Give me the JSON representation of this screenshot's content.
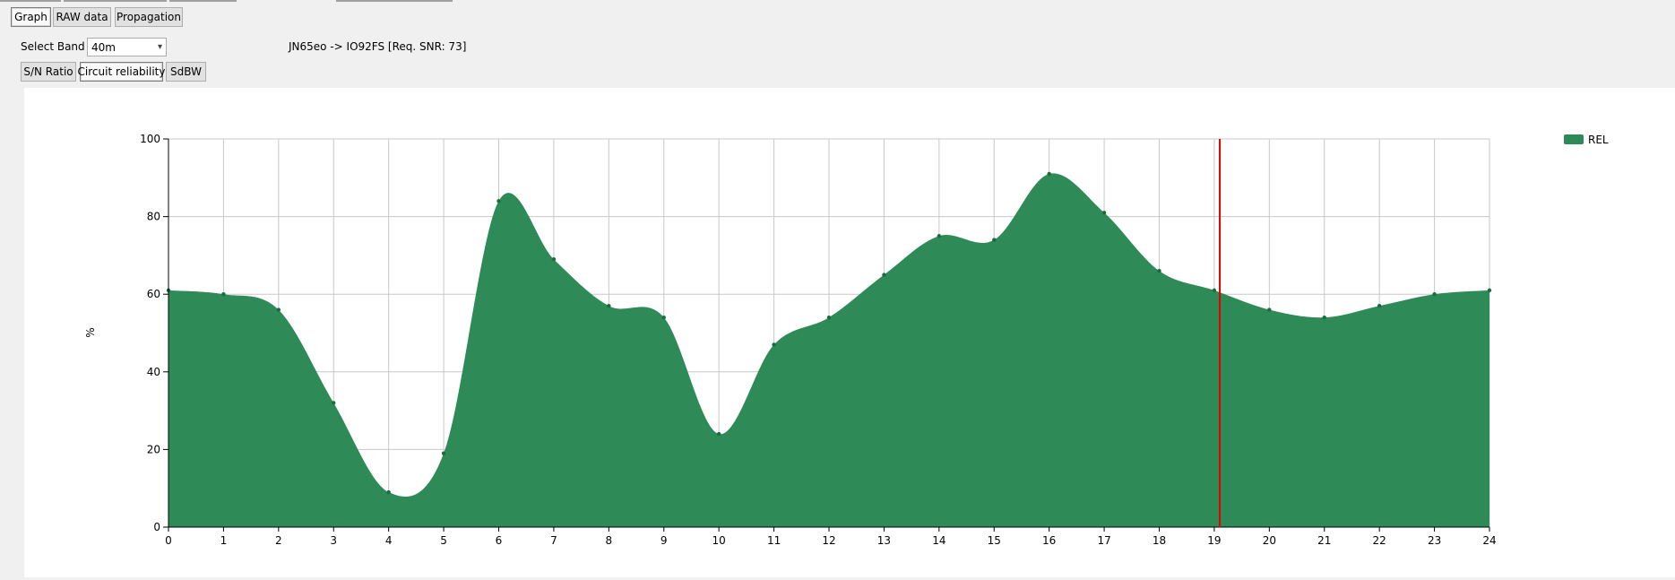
{
  "tabs": {
    "graph": "Graph",
    "raw": "RAW data",
    "propagation": "Propagation"
  },
  "band": {
    "label": "Select Band",
    "selected": "40m"
  },
  "path_info": "JN65eo -> IO92FS [Req. SNR: 73]",
  "metric_buttons": {
    "snr": "S/N Ratio",
    "reliability": "Circuit reliability",
    "sdbw": "SdBW"
  },
  "colors": {
    "series": "#2e8b57",
    "marker": "#e00000",
    "grid": "#c8c8c8"
  },
  "chart_data": {
    "type": "area",
    "x": [
      0,
      1,
      2,
      3,
      4,
      5,
      6,
      7,
      8,
      9,
      10,
      11,
      12,
      13,
      14,
      15,
      16,
      17,
      18,
      19,
      20,
      21,
      22,
      23,
      24
    ],
    "series": [
      {
        "name": "REL",
        "values": [
          61,
          60,
          56,
          32,
          9,
          19,
          84,
          69,
          57,
          54,
          24,
          47,
          54,
          65,
          75,
          74,
          91,
          81,
          66,
          61,
          56,
          54,
          57,
          60,
          61
        ]
      }
    ],
    "xlim": [
      0,
      24
    ],
    "ylim": [
      0,
      100
    ],
    "xticks": [
      "0",
      "1",
      "2",
      "3",
      "4",
      "5",
      "6",
      "7",
      "8",
      "9",
      "10",
      "11",
      "12",
      "13",
      "14",
      "15",
      "16",
      "17",
      "18",
      "19",
      "20",
      "21",
      "22",
      "23",
      "24"
    ],
    "yticks": [
      "0",
      "20",
      "40",
      "60",
      "80",
      "100"
    ],
    "ylabel": "%",
    "marker_x": 19.1,
    "grid": true,
    "legend_position": "top-right"
  }
}
